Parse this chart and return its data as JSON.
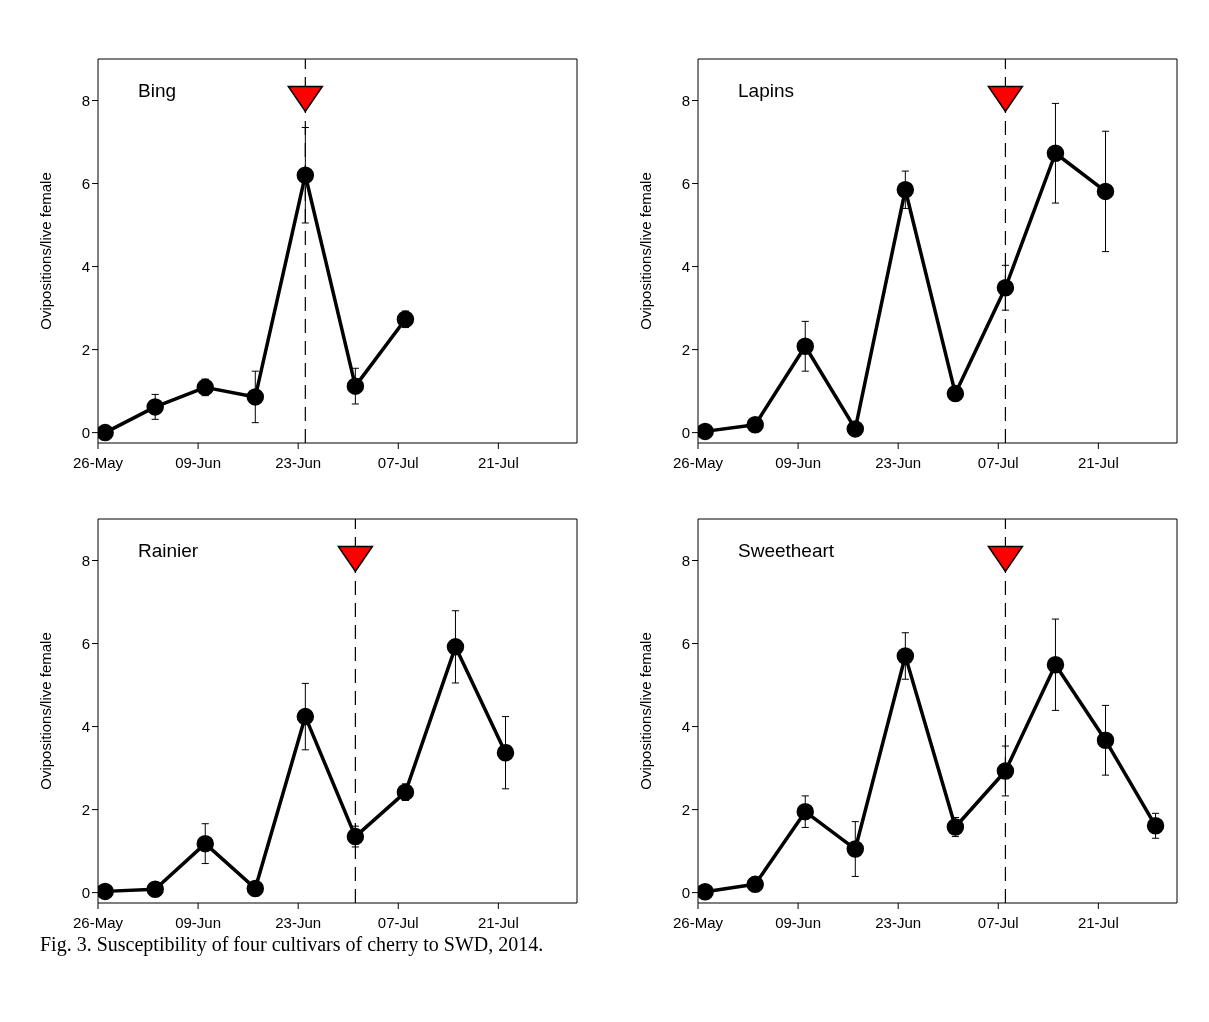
{
  "chart_data": [
    {
      "type": "line",
      "title": "Bing",
      "ylabel": "Ovipositions/live female",
      "x": [
        "2014-05-27",
        "2014-06-03",
        "2014-06-10",
        "2014-06-17",
        "2014-06-24",
        "2014-07-01",
        "2014-07-08"
      ],
      "series": [
        {
          "color": "#000000",
          "values": [
            0.0,
            0.62,
            1.09,
            0.86,
            6.2,
            1.12,
            2.73
          ],
          "errors": [
            null,
            0.3,
            0.2,
            0.62,
            1.15,
            0.43,
            0.2
          ]
        }
      ],
      "xlim": [
        "2014-05-26",
        "2014-08-01"
      ],
      "ylim": [
        -0.25,
        9
      ],
      "xticks": [
        {
          "value": "2014-05-26",
          "label": "26-May"
        },
        {
          "value": "2014-06-09",
          "label": "09-Jun"
        },
        {
          "value": "2014-06-23",
          "label": "23-Jun"
        },
        {
          "value": "2014-07-07",
          "label": "07-Jul"
        },
        {
          "value": "2014-07-21",
          "label": "21-Jul"
        }
      ],
      "yticks": [
        0,
        2,
        4,
        6,
        8
      ],
      "marker": "circle",
      "ref_lines": [
        {
          "axis": "x",
          "value": "2014-06-24",
          "color": "#000000",
          "line_style": "dashed"
        }
      ]
    },
    {
      "type": "line",
      "title": "Lapins",
      "ylabel": "Ovipositions/live female",
      "x": [
        "2014-05-27",
        "2014-06-03",
        "2014-06-10",
        "2014-06-17",
        "2014-06-24",
        "2014-07-01",
        "2014-07-08",
        "2014-07-15",
        "2014-07-22"
      ],
      "series": [
        {
          "color": "#000000",
          "values": [
            0.03,
            0.19,
            2.08,
            0.09,
            5.85,
            0.94,
            3.49,
            6.73,
            5.81
          ],
          "errors": [
            null,
            null,
            0.6,
            null,
            0.45,
            0.15,
            0.54,
            1.2,
            1.45
          ]
        }
      ],
      "xlim": [
        "2014-05-26",
        "2014-08-01"
      ],
      "ylim": [
        -0.25,
        9
      ],
      "xticks": [
        {
          "value": "2014-05-26",
          "label": "26-May"
        },
        {
          "value": "2014-06-09",
          "label": "09-Jun"
        },
        {
          "value": "2014-06-23",
          "label": "23-Jun"
        },
        {
          "value": "2014-07-07",
          "label": "07-Jul"
        },
        {
          "value": "2014-07-21",
          "label": "21-Jul"
        }
      ],
      "yticks": [
        0,
        2,
        4,
        6,
        8
      ],
      "marker": "circle",
      "ref_lines": [
        {
          "axis": "x",
          "value": "2014-07-08",
          "color": "#000000",
          "line_style": "dashed"
        }
      ]
    },
    {
      "type": "line",
      "title": "Rainier",
      "ylabel": "Ovipositions/live female",
      "x": [
        "2014-05-27",
        "2014-06-03",
        "2014-06-10",
        "2014-06-17",
        "2014-06-24",
        "2014-07-01",
        "2014-07-08",
        "2014-07-15",
        "2014-07-22"
      ],
      "series": [
        {
          "color": "#000000",
          "values": [
            0.03,
            0.08,
            1.18,
            0.1,
            4.24,
            1.35,
            2.42,
            5.92,
            3.37
          ],
          "errors": [
            null,
            null,
            0.48,
            null,
            0.8,
            0.25,
            0.2,
            0.87,
            0.87
          ]
        }
      ],
      "xlim": [
        "2014-05-26",
        "2014-08-01"
      ],
      "ylim": [
        -0.25,
        9
      ],
      "xticks": [
        {
          "value": "2014-05-26",
          "label": "26-May"
        },
        {
          "value": "2014-06-09",
          "label": "09-Jun"
        },
        {
          "value": "2014-06-23",
          "label": "23-Jun"
        },
        {
          "value": "2014-07-07",
          "label": "07-Jul"
        },
        {
          "value": "2014-07-21",
          "label": "21-Jul"
        }
      ],
      "yticks": [
        0,
        2,
        4,
        6,
        8
      ],
      "marker": "circle",
      "ref_lines": [
        {
          "axis": "x",
          "value": "2014-07-01",
          "color": "#000000",
          "line_style": "dashed"
        }
      ]
    },
    {
      "type": "line",
      "title": "Sweetheart",
      "ylabel": "Ovipositions/live female",
      "x": [
        "2014-05-27",
        "2014-06-03",
        "2014-06-10",
        "2014-06-17",
        "2014-06-24",
        "2014-07-01",
        "2014-07-08",
        "2014-07-15",
        "2014-07-22",
        "2014-07-29"
      ],
      "series": [
        {
          "color": "#000000",
          "values": [
            0.02,
            0.2,
            1.95,
            1.05,
            5.7,
            1.58,
            2.93,
            5.49,
            3.67,
            1.61
          ],
          "errors": [
            null,
            null,
            0.38,
            0.66,
            0.56,
            0.23,
            0.6,
            1.1,
            0.84,
            0.3
          ]
        }
      ],
      "xlim": [
        "2014-05-26",
        "2014-08-01"
      ],
      "ylim": [
        -0.25,
        9
      ],
      "xticks": [
        {
          "value": "2014-05-26",
          "label": "26-May"
        },
        {
          "value": "2014-06-09",
          "label": "09-Jun"
        },
        {
          "value": "2014-06-23",
          "label": "23-Jun"
        },
        {
          "value": "2014-07-07",
          "label": "07-Jul"
        },
        {
          "value": "2014-07-21",
          "label": "21-Jul"
        }
      ],
      "yticks": [
        0,
        2,
        4,
        6,
        8
      ],
      "marker": "circle",
      "ref_lines": [
        {
          "axis": "x",
          "value": "2014-07-08",
          "color": "#000000",
          "line_style": "dashed"
        }
      ],
      "annotations": [
        "Fig. 3.  Susceptibility of four cultivars of cherry to SWD, 2014."
      ]
    }
  ]
}
